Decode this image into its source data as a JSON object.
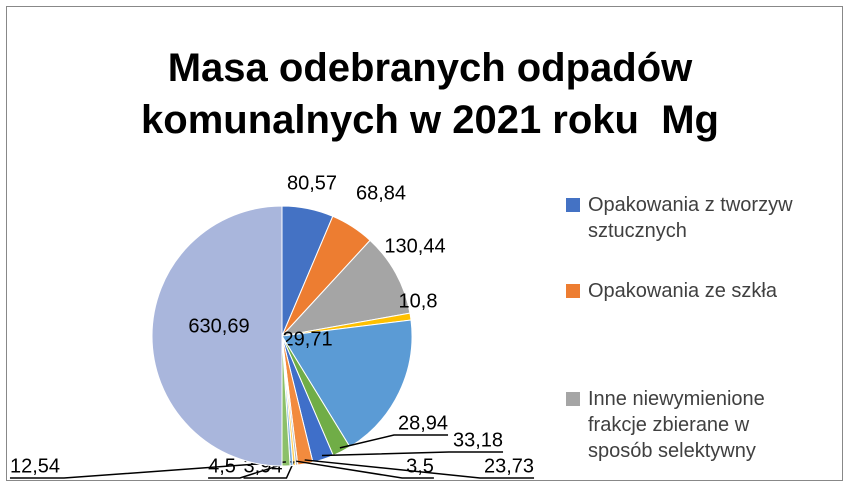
{
  "chart_data": {
    "type": "pie",
    "title": "Masa odebranych odpadów komunalnych w 2021 roku  Mg",
    "categories": [
      "Opakowania z tworzyw sztucznych",
      "Opakowania ze szkła",
      "Inne niewymienione frakcje zbierane w sposób selektywny",
      null,
      null,
      null,
      null,
      null,
      null,
      null,
      null,
      null,
      null
    ],
    "values": [
      80.57,
      68.84,
      130.44,
      10.8,
      229.71,
      28.94,
      33.18,
      23.73,
      3.5,
      3.94,
      4.5,
      12.54,
      630.69
    ],
    "value_labels": [
      "80,57",
      "68,84",
      "130,44",
      "10,8",
      "229,71",
      "28,94",
      "33,18",
      "23,73",
      "3,5",
      "3,94",
      "4,5",
      "12,54",
      "630,69"
    ],
    "colors": [
      "#4472c4",
      "#ed7d31",
      "#a5a5a5",
      "#ffc000",
      "#5b9bd5",
      "#70ad47",
      "#3f6fc9",
      "#f28b3e",
      "#b5b5b5",
      "#ffcd4a",
      "#7fb2e0",
      "#8cc06a",
      "#a9b6dc"
    ],
    "legend": "right"
  }
}
